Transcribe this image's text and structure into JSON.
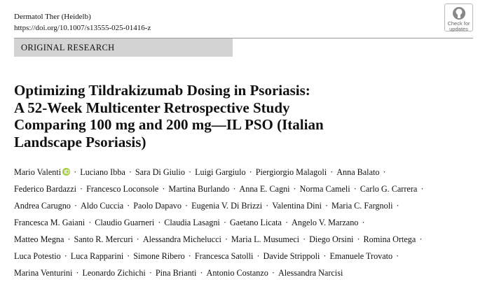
{
  "header": {
    "journal": "Dermatol Ther (Heidelb)",
    "doi": "https://doi.org/10.1007/s13555-025-01416-z",
    "badge": [
      "Check for",
      "updates"
    ]
  },
  "section": "ORIGINAL RESEARCH",
  "title_lines": [
    "Optimizing Tildrakizumab Dosing in Psoriasis:",
    "A 52-Week Multicenter Retrospective Study",
    "Comparing 100 mg and 200 mg—IL PSO (Italian",
    "Landscape Psoriasis)"
  ],
  "author_lines": [
    [
      "Mario Valenti",
      "Luciano Ibba",
      "Sara Di Giulio",
      "Luigi Gargiulo",
      "Piergiorgio Malagoli",
      "Anna Balato"
    ],
    [
      "Federico Bardazzi",
      "Francesco Loconsole",
      "Martina Burlando",
      "Anna E. Cagni",
      "Norma Cameli",
      "Carlo G. Carrera"
    ],
    [
      "Andrea Carugno",
      "Aldo Cuccia",
      "Paolo Dapavo",
      "Eugenia V. Di Brizzi",
      "Valentina Dini",
      "Maria C. Fargnoli"
    ],
    [
      "Francesca M. Gaiani",
      "Claudio Guarneri",
      "Claudia Lasagni",
      "Gaetano Licata",
      "Angelo V. Marzano"
    ],
    [
      "Matteo Megna",
      "Santo R. Mercuri",
      "Alessandra Michelucci",
      "Maria L. Musumeci",
      "Diego Orsini",
      "Romina Ortega"
    ],
    [
      "Luca Potestio",
      "Luca Rapparini",
      "Simone Ribero",
      "Francesca Satolli",
      "Davide Strippoli",
      "Emanuele Trovato"
    ],
    [
      "Marina Venturini",
      "Leonardo Zichichi",
      "Pina Brianti",
      "Antonio Costanzo",
      "Alessandra Narcisi"
    ]
  ]
}
